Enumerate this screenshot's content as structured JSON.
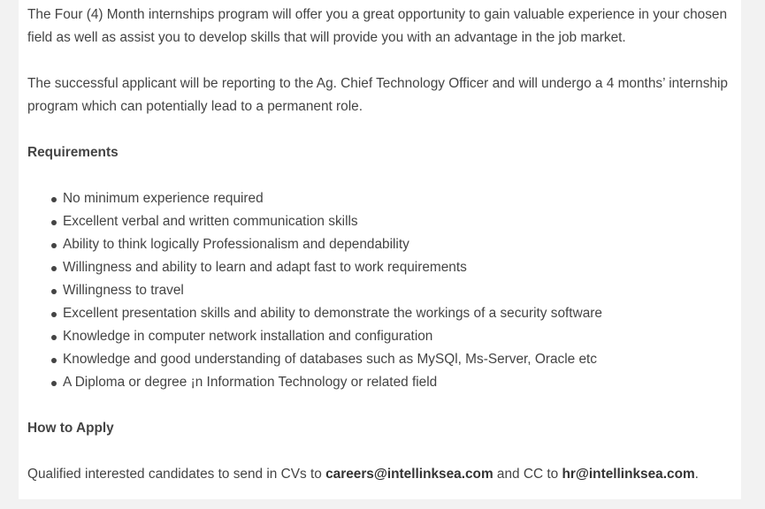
{
  "intro_paragraph": "The Four (4) Month internships program will offer you a great opportunity to gain valuable experience in your chosen field as well as assist you to develop skills that will provide you with an advantage in the job market.",
  "reporting_paragraph": "The successful applicant will be reporting to the Ag. Chief Technology Officer and will undergo a 4 months’ internship program which can potentially lead to a permanent role.",
  "requirements": {
    "heading": "Requirements",
    "items": [
      "No minimum experience required",
      "Excellent verbal and written communication skills",
      "Ability to think logically Professionalism and dependability",
      "Willingness and ability to learn and adapt fast to work requirements",
      "Willingness to travel",
      "Excellent presentation skills and ability to demonstrate the workings of a security software",
      "Knowledge in computer network installation and configuration",
      "Knowledge and good understanding of databases such as MySQl, Ms-Server, Oracle etc",
      "A Diploma or degree ¡n Information Technology or related field"
    ]
  },
  "how_to_apply": {
    "heading": "How to Apply",
    "text_before": "Qualified interested candidates to send in CVs to ",
    "email_primary": "careers@intellinksea.com",
    "text_middle": " and CC to ",
    "email_cc": "hr@intellinksea.com",
    "text_after": "."
  }
}
